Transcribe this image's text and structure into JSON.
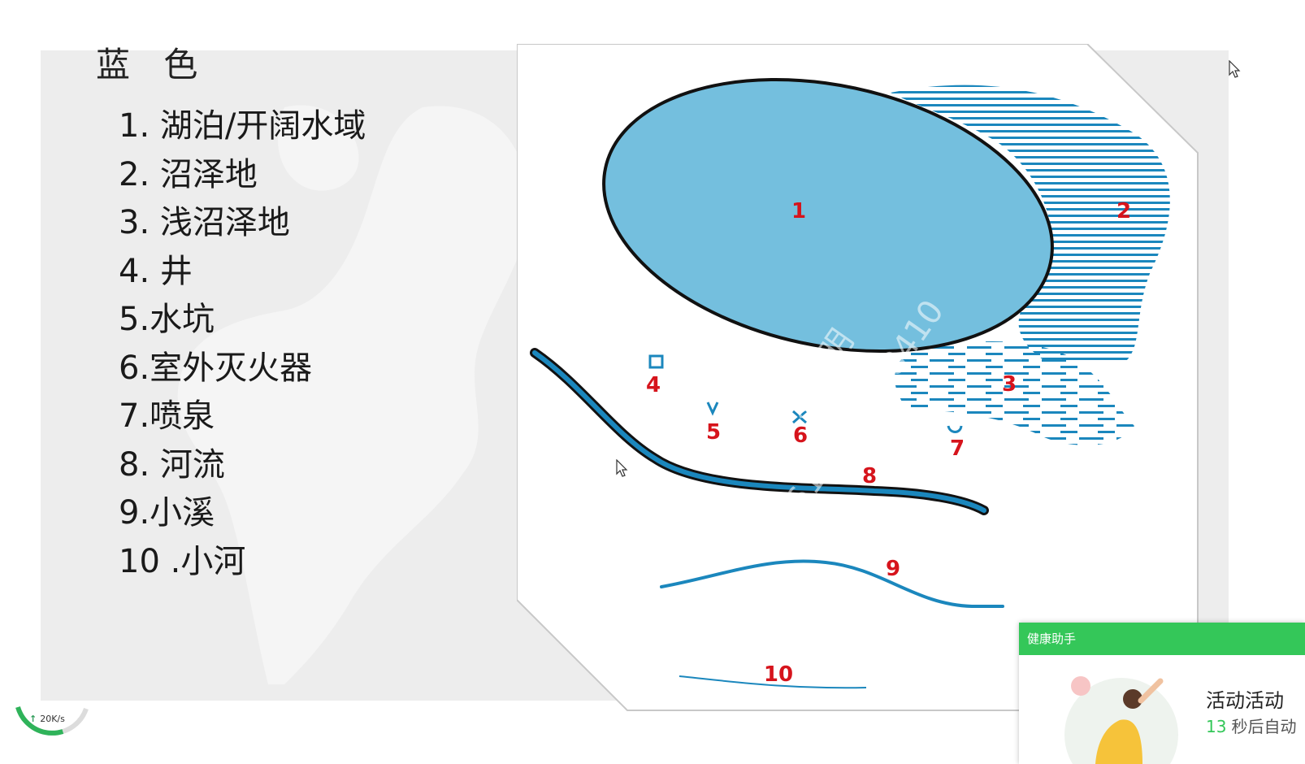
{
  "slide": {
    "title": "蓝 色",
    "legend": [
      "1. 湖泊/开阔水域",
      "2. 沼泽地",
      "3. 浅沼泽地",
      "4. 井",
      "5.水坑",
      "6.室外灭火器",
      "7.喷泉",
      "8. 河流",
      "9.小溪",
      "10 .小河"
    ]
  },
  "map": {
    "labels": [
      "1",
      "2",
      "3",
      "4",
      "5",
      "6",
      "7",
      "8",
      "9",
      "10"
    ],
    "watermark_name": "906-涂文明",
    "watermark_phone": "+8615697768410",
    "colors": {
      "lake_fill": "#74bfde",
      "water_blue": "#1b87bd",
      "label_red": "#d6141c"
    }
  },
  "taskbar": {
    "net_speed": "20K/s",
    "net_icon": "upload-arrow-icon"
  },
  "health_popup": {
    "header": "健康助手",
    "title": "活动活动",
    "seconds": "13",
    "countdown_text": "秒后自动"
  }
}
